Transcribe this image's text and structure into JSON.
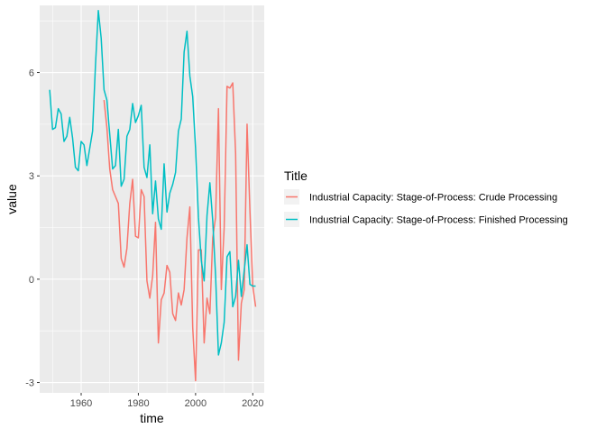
{
  "chart_data": {
    "type": "line",
    "xlabel": "time",
    "ylabel": "value",
    "xlim": [
      1945.5,
      2024
    ],
    "ylim": [
      -3.3,
      7.95
    ],
    "x_ticks": [
      1960,
      1980,
      2000,
      2020
    ],
    "y_ticks": [
      -3,
      0,
      3,
      6
    ],
    "x_minor_ticks": [
      1950,
      1970,
      1990,
      2010
    ],
    "y_minor_ticks": [
      -1.5,
      1.5,
      4.5,
      7.5
    ],
    "grid": true,
    "legend": {
      "title": "Title",
      "position": "right"
    },
    "series": [
      {
        "name": "Industrial Capacity: Stage-of-Process: Crude Processing",
        "color": "#F8766D",
        "x": [
          1968,
          1969,
          1970,
          1971,
          1972,
          1973,
          1974,
          1975,
          1976,
          1977,
          1978,
          1979,
          1980,
          1981,
          1982,
          1983,
          1984,
          1985,
          1986,
          1987,
          1988,
          1989,
          1990,
          1991,
          1992,
          1993,
          1994,
          1995,
          1996,
          1997,
          1998,
          1999,
          2000,
          2001,
          2002,
          2003,
          2004,
          2005,
          2006,
          2007,
          2008,
          2009,
          2010,
          2011,
          2012,
          2013,
          2014,
          2015,
          2016,
          2017,
          2018,
          2019,
          2020,
          2021
        ],
        "y": [
          5.2,
          4.4,
          3.2,
          2.6,
          2.4,
          2.2,
          0.6,
          0.35,
          0.9,
          2.2,
          2.9,
          1.25,
          1.2,
          2.6,
          2.4,
          -0.05,
          -0.55,
          0.1,
          1.65,
          -1.85,
          -0.6,
          -0.4,
          0.4,
          0.2,
          -1.0,
          -1.2,
          -0.4,
          -0.75,
          -0.3,
          1.2,
          2.1,
          -1.4,
          -2.95,
          0.85,
          0.85,
          -1.85,
          -0.55,
          -1.0,
          1.2,
          1.8,
          4.95,
          -0.3,
          1.5,
          5.6,
          5.55,
          5.7,
          3.65,
          -2.35,
          -0.7,
          -0.3,
          4.5,
          2.0,
          -0.2,
          -0.8
        ]
      },
      {
        "name": "Industrial Capacity: Stage-of-Process: Finished Processing",
        "color": "#00BFC4",
        "x": [
          1949,
          1950,
          1951,
          1952,
          1953,
          1954,
          1955,
          1956,
          1957,
          1958,
          1959,
          1960,
          1961,
          1962,
          1963,
          1964,
          1965,
          1966,
          1967,
          1968,
          1969,
          1970,
          1971,
          1972,
          1973,
          1974,
          1975,
          1976,
          1977,
          1978,
          1979,
          1980,
          1981,
          1982,
          1983,
          1984,
          1985,
          1986,
          1987,
          1988,
          1989,
          1990,
          1991,
          1992,
          1993,
          1994,
          1995,
          1996,
          1997,
          1998,
          1999,
          2000,
          2001,
          2002,
          2003,
          2004,
          2005,
          2006,
          2007,
          2008,
          2009,
          2010,
          2011,
          2012,
          2013,
          2014,
          2015,
          2016,
          2017,
          2018,
          2019,
          2020,
          2021
        ],
        "y": [
          5.5,
          4.35,
          4.4,
          4.95,
          4.8,
          4.0,
          4.15,
          4.7,
          4.1,
          3.25,
          3.15,
          4.0,
          3.9,
          3.3,
          3.8,
          4.3,
          6.2,
          7.8,
          7.0,
          5.5,
          5.2,
          4.2,
          3.2,
          3.3,
          4.35,
          2.7,
          2.9,
          4.15,
          4.35,
          5.1,
          4.55,
          4.75,
          5.05,
          3.25,
          2.95,
          3.9,
          1.9,
          2.85,
          1.75,
          1.45,
          3.35,
          1.95,
          2.5,
          2.75,
          3.1,
          4.3,
          4.65,
          6.6,
          7.2,
          5.9,
          5.3,
          3.8,
          1.8,
          0.55,
          -0.05,
          1.85,
          2.8,
          1.7,
          0.1,
          -2.2,
          -1.85,
          -1.25,
          0.65,
          0.8,
          -0.8,
          -0.5,
          0.55,
          -0.5,
          0.25,
          1.0,
          -0.15,
          -0.2,
          -0.2
        ]
      }
    ]
  }
}
